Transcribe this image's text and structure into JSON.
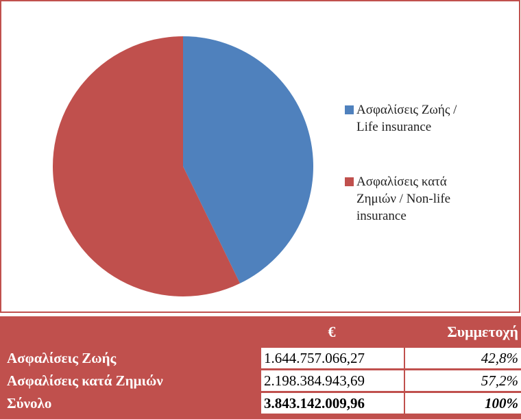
{
  "chart_data": {
    "type": "pie",
    "categories": [
      "Ασφαλίσεις Ζωής / Life insurance",
      "Ασφαλίσεις κατά Ζημιών / Non-life insurance"
    ],
    "values": [
      42.8,
      57.2
    ],
    "colors": [
      "#4f81bd",
      "#c0504d"
    ]
  },
  "table": {
    "header": [
      "€",
      "Συμμετοχή"
    ],
    "rows": [
      [
        "Ασφαλίσεις Ζωής",
        "1.644.757.066,27",
        "42,8%"
      ],
      [
        "Ασφαλίσεις κατά Ζημιών",
        "2.198.384.943,69",
        "57,2%"
      ],
      [
        "Σύνολο",
        "3.843.142.009,96",
        "100%"
      ]
    ]
  }
}
